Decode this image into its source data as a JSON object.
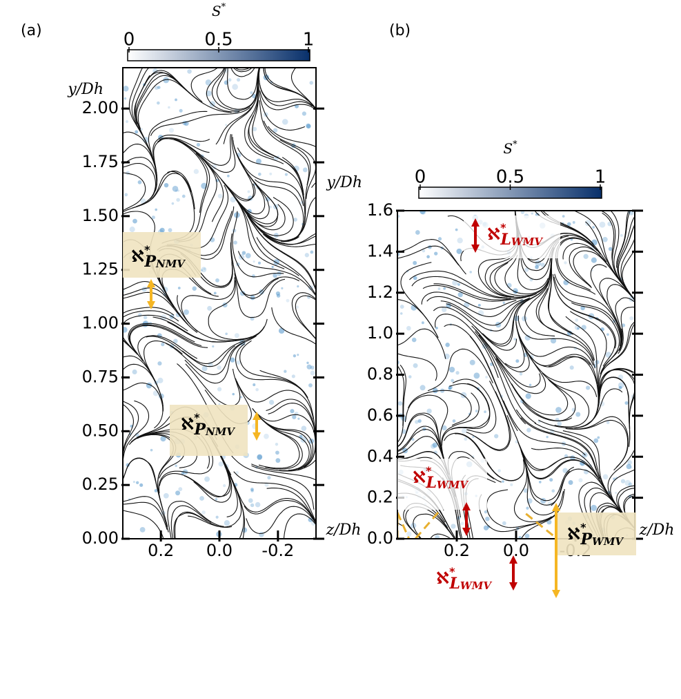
{
  "chart_data": [
    {
      "type": "streamline",
      "panel_label": "(a)",
      "xlabel": "z/Dh",
      "ylabel": "y/Dh",
      "colorbar_label": {
        "base": "S",
        "sup": "*"
      },
      "colorbar_ticks": [
        0,
        0.5,
        1
      ],
      "colorbar_colors": [
        "#ffffff",
        "#08306b"
      ],
      "xlim": [
        0.33,
        -0.33
      ],
      "ylim": [
        0,
        2.19
      ],
      "xticks": [
        0.2,
        {
          "value": 0,
          "label": "0.0"
        },
        -0.2
      ],
      "yticks": [
        {
          "value": 0,
          "label": "0.00"
        },
        0.25,
        {
          "value": 0.5,
          "label": "0.50"
        },
        0.75,
        {
          "value": 1,
          "label": "1.00"
        },
        1.25,
        {
          "value": 1.5,
          "label": "1.50"
        },
        1.75,
        {
          "value": 2,
          "label": "2.00"
        }
      ],
      "annotations": [
        {
          "base": "ℵ",
          "sup": "*",
          "sub": "P",
          "subsub": "NMV"
        },
        {
          "base": "ℵ",
          "sup": "*",
          "sub": "P",
          "subsub": "NMV"
        }
      ]
    },
    {
      "type": "streamline",
      "panel_label": "(b)",
      "xlabel": "z/Dh",
      "ylabel": "y/Dh",
      "colorbar_label": {
        "base": "S",
        "sup": "*"
      },
      "colorbar_ticks": [
        0,
        0.5,
        1
      ],
      "colorbar_colors": [
        "#ffffff",
        "#08306b"
      ],
      "xlim": [
        0.4,
        -0.4
      ],
      "ylim": [
        0,
        1.6
      ],
      "xticks": [
        0.2,
        {
          "value": 0,
          "label": "0.0"
        },
        -0.2
      ],
      "yticks": [
        {
          "value": 0,
          "label": "0.0"
        },
        0.2,
        0.4,
        0.6,
        0.8,
        {
          "value": 1,
          "label": "1.0"
        },
        1.2,
        1.4,
        1.6
      ],
      "annotations": [
        {
          "base": "ℵ",
          "sup": "*",
          "sub": "L",
          "subsub": "WMV"
        },
        {
          "base": "ℵ",
          "sup": "*",
          "sub": "L",
          "subsub": "WMV"
        },
        {
          "base": "ℵ",
          "sup": "*",
          "sub": "L",
          "subsub": "WMV"
        },
        {
          "base": "ℵ",
          "sup": "*",
          "sub": "P",
          "subsub": "WMV"
        }
      ]
    }
  ]
}
